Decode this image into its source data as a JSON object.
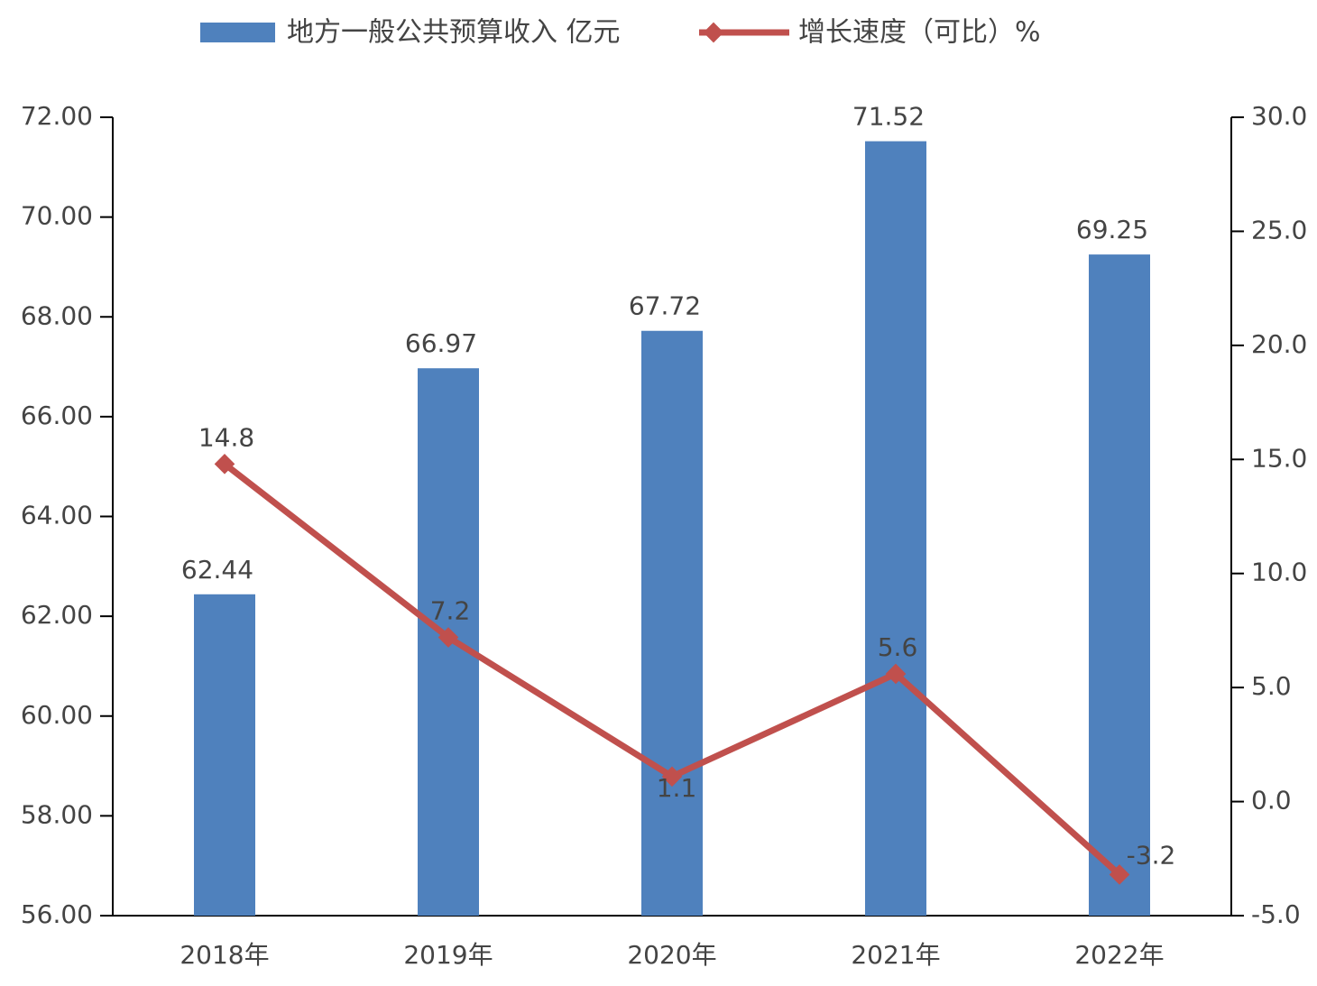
{
  "chart_data": {
    "type": "bar",
    "categories": [
      "2018年",
      "2019年",
      "2020年",
      "2021年",
      "2022年"
    ],
    "series": [
      {
        "name": "地方一般公共预算收入 亿元",
        "color": "#4f81bd",
        "values": [
          62.44,
          66.97,
          67.72,
          71.52,
          69.25
        ]
      },
      {
        "name": "增长速度（可比）%",
        "type": "line",
        "axis": "y2",
        "color": "#c0504d",
        "values": [
          14.8,
          7.2,
          1.1,
          5.6,
          -3.2
        ]
      }
    ],
    "ylim": [
      56,
      72
    ],
    "yticks": [
      {
        "value": 56,
        "label": "56.00"
      },
      {
        "value": 58,
        "label": "58.00"
      },
      {
        "value": 60,
        "label": "60.00"
      },
      {
        "value": 62,
        "label": "62.00"
      },
      {
        "value": 64,
        "label": "64.00"
      },
      {
        "value": 66,
        "label": "66.00"
      },
      {
        "value": 68,
        "label": "68.00"
      },
      {
        "value": 70,
        "label": "70.00"
      },
      {
        "value": 72,
        "label": "72.00"
      }
    ],
    "y2lim": [
      -5,
      30
    ],
    "y2ticks": [
      {
        "value": -5,
        "label": "-5.0"
      },
      {
        "value": 0,
        "label": "0.0"
      },
      {
        "value": 5,
        "label": "5.0"
      },
      {
        "value": 10,
        "label": "10.0"
      },
      {
        "value": 15,
        "label": "15.0"
      },
      {
        "value": 20,
        "label": "20.0"
      },
      {
        "value": 25,
        "label": "25.0"
      },
      {
        "value": 30,
        "label": "30.0"
      }
    ],
    "grid": false,
    "legend": "top"
  }
}
